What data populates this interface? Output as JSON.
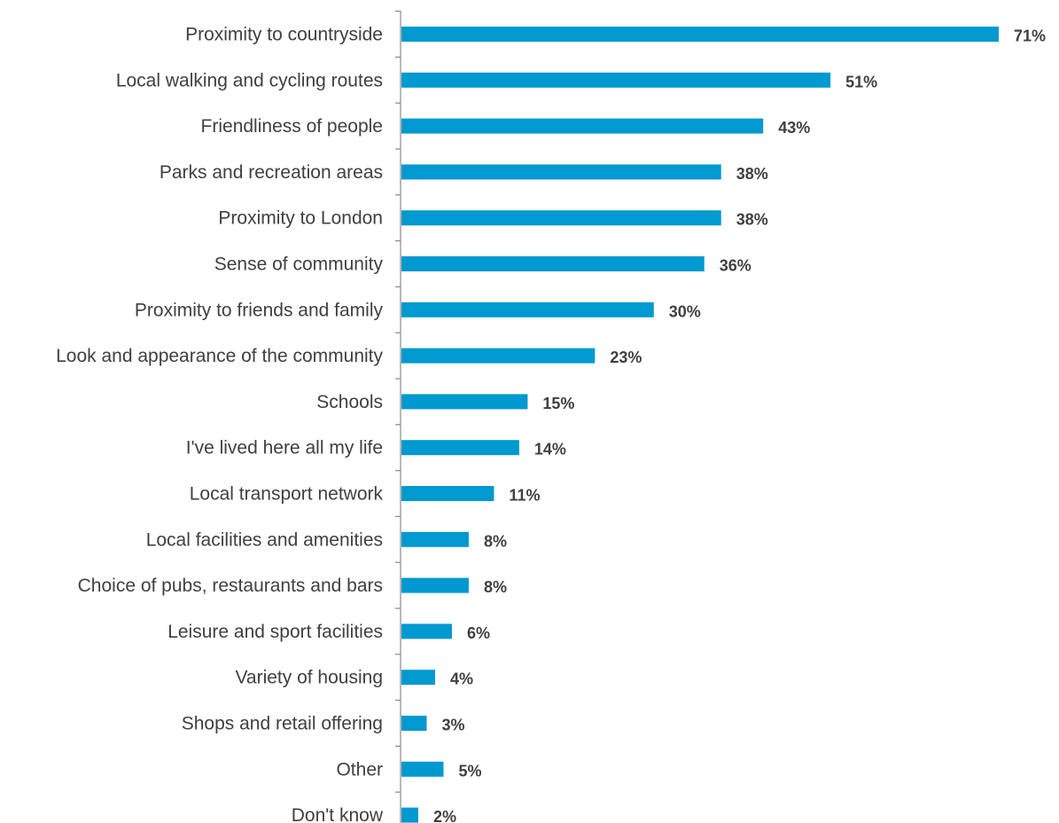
{
  "chart_data": {
    "type": "bar",
    "orientation": "horizontal",
    "categories": [
      "Proximity to countryside",
      "Local walking and cycling routes",
      "Friendliness of people",
      "Parks and recreation areas",
      "Proximity to London",
      "Sense of community ",
      "Proximity to friends and family",
      "Look and appearance of the community",
      "Schools",
      "I've lived here all my life",
      "Local transport network",
      "Local facilities and amenities",
      "Choice of pubs, restaurants and bars",
      "Leisure and sport facilities",
      "Variety of housing",
      "Shops and retail offering",
      "Other",
      "Don't know"
    ],
    "values": [
      71,
      51,
      43,
      38,
      38,
      36,
      30,
      23,
      15,
      14,
      11,
      8,
      8,
      6,
      4,
      3,
      5,
      2
    ],
    "value_labels": [
      "71%",
      "51%",
      "43%",
      "38%",
      "38%",
      "36%",
      "30%",
      "23%",
      "15%",
      "14%",
      "11%",
      "8%",
      "8%",
      "6%",
      "4%",
      "3%",
      "5%",
      "2%"
    ],
    "unit": "%",
    "title": "",
    "xlabel": "",
    "ylabel": "",
    "xlim": [
      0,
      71
    ],
    "grid": false,
    "legend": "none",
    "bar_color": "#0099D0",
    "axis_color": "#888888",
    "label_color": "#404040"
  }
}
